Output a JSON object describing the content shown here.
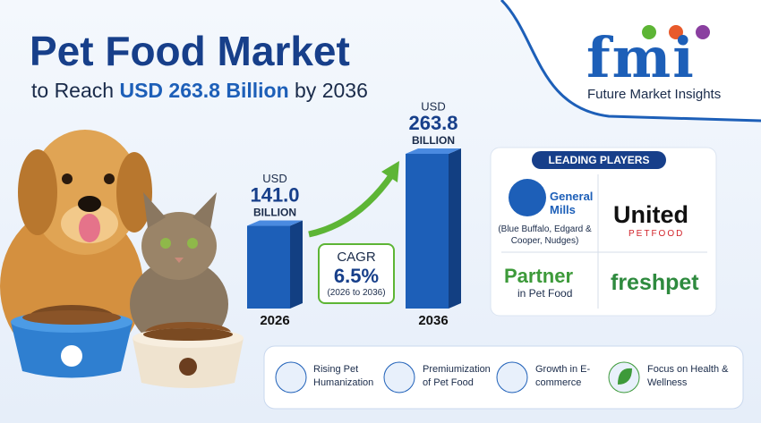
{
  "header": {
    "title": "Pet Food Market",
    "subtitle_prefix": "to Reach",
    "subtitle_highlight": "USD 263.8 Billion",
    "subtitle_suffix": "by 2036"
  },
  "logo": {
    "mark": "fmi",
    "name": "Future Market Insights"
  },
  "chart": {
    "bars": [
      {
        "year": "2026",
        "unit_top": "USD",
        "value": 141.0,
        "value_label": "141.0",
        "unit_bottom": "BILLION"
      },
      {
        "year": "2036",
        "unit_top": "USD",
        "value": 263.8,
        "value_label": "263.8",
        "unit_bottom": "BILLION"
      }
    ],
    "cagr": {
      "label": "CAGR",
      "value": "6.5%",
      "period": "(2026 to 2036)"
    }
  },
  "players": {
    "title": "LEADING PLAYERS",
    "general_mills": {
      "name_line1": "General",
      "name_line2": "Mills",
      "brands": "(Blue Buffalo, Edgard & Cooper, Nudges)"
    },
    "united": {
      "name": "United",
      "sub": "PETFOOD"
    },
    "partner": {
      "name": "Partner",
      "sub": "in Pet Food"
    },
    "freshpet": {
      "name": "freshpet"
    }
  },
  "features": [
    {
      "label": "Rising Pet Humanization"
    },
    {
      "label": "Premiumization of Pet Food"
    },
    {
      "label": "Growth in E-commerce"
    },
    {
      "label": "Focus on Health & Wellness"
    }
  ]
}
